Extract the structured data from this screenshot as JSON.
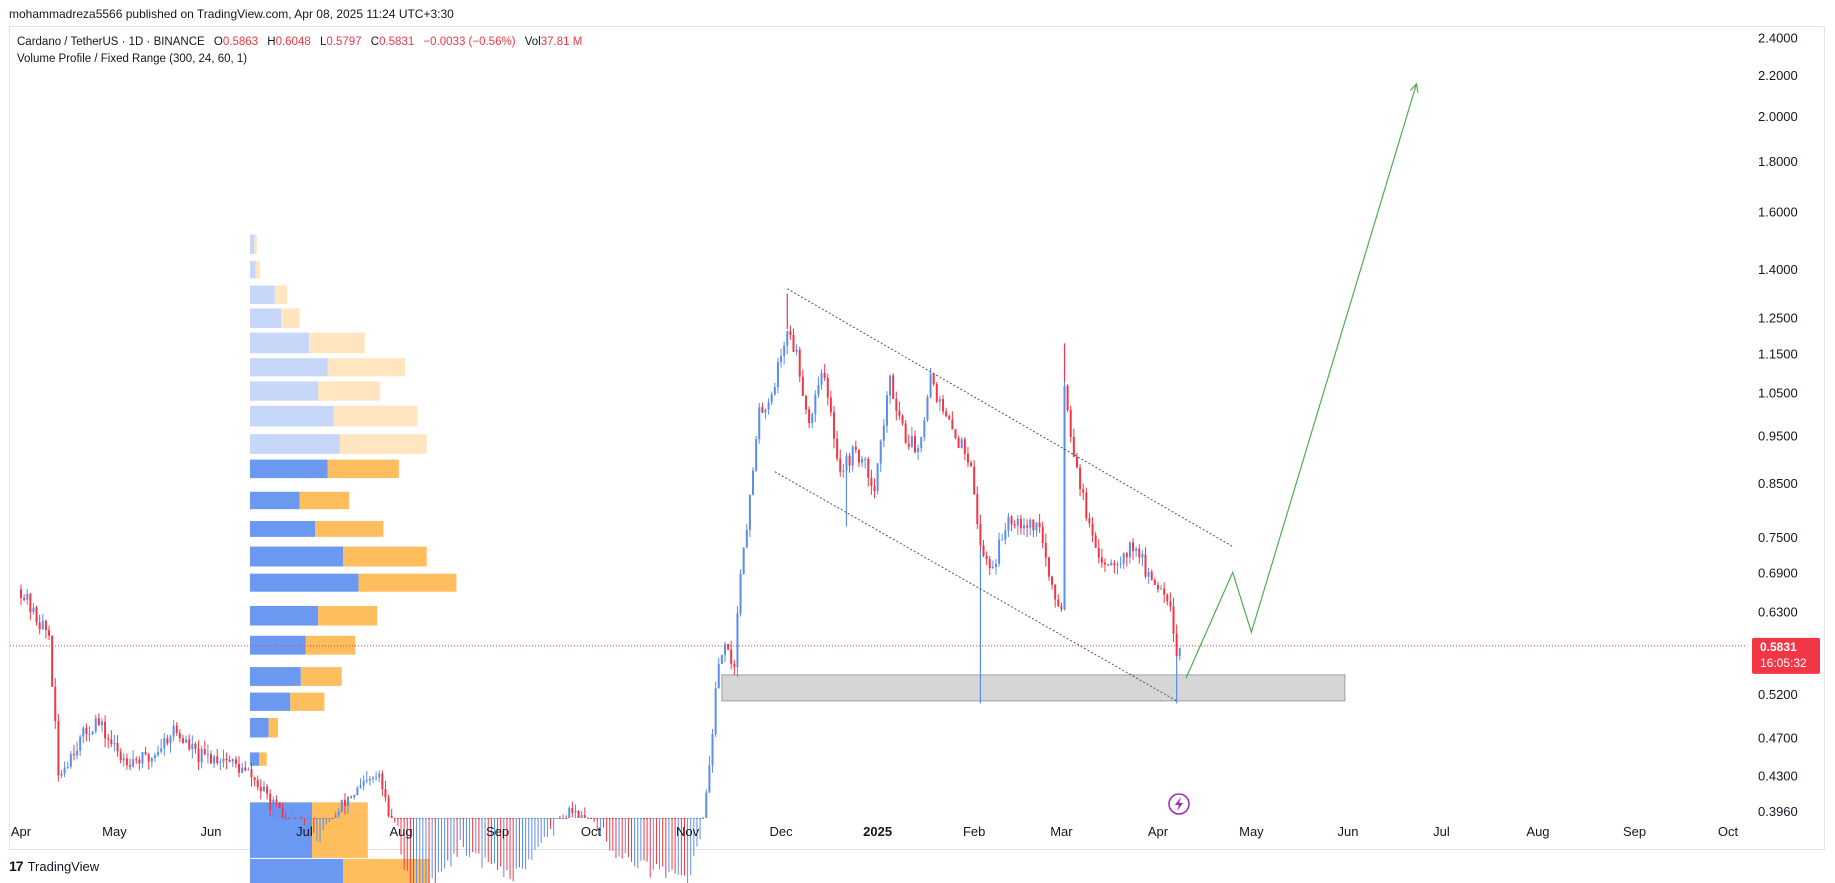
{
  "header": {
    "published": "mohammadreza5566 published on TradingView.com, Apr 08, 2025 11:24 UTC+3:30"
  },
  "legend": {
    "symbol": "Cardano / TetherUS · 1D · BINANCE",
    "o_label": "O",
    "o_value": "0.5863",
    "h_label": "H",
    "h_value": "0.6048",
    "l_label": "L",
    "l_value": "0.5797",
    "c_label": "C",
    "c_value": "0.5831",
    "change": "−0.0033 (−0.56%)",
    "vol_label": "Vol",
    "vol_value": "37.81 M",
    "indicator": "Volume Profile / Fixed Range (300, 24, 60, 1)"
  },
  "price_tag": {
    "price": "0.5831",
    "countdown": "16:05:32"
  },
  "footer": {
    "brand": "TradingView",
    "logo_text": "17"
  },
  "colors": {
    "up": "#5b8def",
    "down": "#f23645",
    "vp_buy": "#5b8def",
    "vp_sell": "#ffb74d",
    "drawing": "#4caf50",
    "zone": "#cfcfcf",
    "price_line": "#f23645"
  },
  "chart_data": {
    "type": "candlestick",
    "symbol": "ADAUSDT",
    "interval": "1D",
    "scale": "log",
    "x_ticks": [
      "Apr",
      "May",
      "Jun",
      "Jul",
      "Aug",
      "Sep",
      "Oct",
      "Nov",
      "Dec",
      "2025",
      "Feb",
      "Mar",
      "Apr",
      "May",
      "Jun",
      "Jul",
      "Aug",
      "Sep",
      "Oct"
    ],
    "y_ticks": [
      "2.4000",
      "2.2000",
      "2.0000",
      "1.8000",
      "1.6000",
      "1.4000",
      "1.2500",
      "1.1500",
      "1.0500",
      "0.9500",
      "0.8500",
      "0.7500",
      "0.6900",
      "0.6300",
      "0.5200",
      "0.4700",
      "0.4300",
      "0.3960"
    ],
    "ylim": [
      0.3905,
      2.46
    ],
    "last_price": 0.5831,
    "price_path": [
      [
        "2024-04-01",
        0.665
      ],
      [
        "2024-04-05",
        0.628
      ],
      [
        "2024-04-10",
        0.598
      ],
      [
        "2024-04-13",
        0.43
      ],
      [
        "2024-04-18",
        0.46
      ],
      [
        "2024-04-25",
        0.49
      ],
      [
        "2024-05-03",
        0.45
      ],
      [
        "2024-05-12",
        0.447
      ],
      [
        "2024-05-20",
        0.48
      ],
      [
        "2024-05-28",
        0.45
      ],
      [
        "2024-06-05",
        0.45
      ],
      [
        "2024-06-14",
        0.43
      ],
      [
        "2024-06-24",
        0.39
      ],
      [
        "2024-07-05",
        0.365
      ],
      [
        "2024-07-15",
        0.41
      ],
      [
        "2024-07-25",
        0.43
      ],
      [
        "2024-08-05",
        0.31
      ],
      [
        "2024-08-20",
        0.36
      ],
      [
        "2024-09-05",
        0.33
      ],
      [
        "2024-09-25",
        0.4
      ],
      [
        "2024-10-10",
        0.35
      ],
      [
        "2024-11-01",
        0.33
      ],
      [
        "2024-11-06",
        0.38
      ],
      [
        "2024-11-10",
        0.52
      ],
      [
        "2024-11-12",
        0.58
      ],
      [
        "2024-11-16",
        0.56
      ],
      [
        "2024-11-18",
        0.7
      ],
      [
        "2024-11-21",
        0.82
      ],
      [
        "2024-11-24",
        1.0
      ],
      [
        "2024-11-28",
        1.05
      ],
      [
        "2024-12-03",
        1.22
      ],
      [
        "2024-12-06",
        1.15
      ],
      [
        "2024-12-10",
        0.98
      ],
      [
        "2024-12-14",
        1.12
      ],
      [
        "2024-12-20",
        0.88
      ],
      [
        "2024-12-25",
        0.92
      ],
      [
        "2024-12-31",
        0.85
      ],
      [
        "2025-01-05",
        1.08
      ],
      [
        "2025-01-10",
        0.95
      ],
      [
        "2025-01-14",
        0.92
      ],
      [
        "2025-01-18",
        1.1
      ],
      [
        "2025-01-22",
        1.0
      ],
      [
        "2025-01-27",
        0.94
      ],
      [
        "2025-01-31",
        0.9
      ],
      [
        "2025-02-03",
        0.73
      ],
      [
        "2025-02-07",
        0.7
      ],
      [
        "2025-02-12",
        0.79
      ],
      [
        "2025-02-17",
        0.78
      ],
      [
        "2025-02-22",
        0.77
      ],
      [
        "2025-02-26",
        0.66
      ],
      [
        "2025-03-01",
        0.64
      ],
      [
        "2025-03-02",
        1.08
      ],
      [
        "2025-03-04",
        0.96
      ],
      [
        "2025-03-08",
        0.82
      ],
      [
        "2025-03-12",
        0.72
      ],
      [
        "2025-03-16",
        0.71
      ],
      [
        "2025-03-21",
        0.72
      ],
      [
        "2025-03-25",
        0.74
      ],
      [
        "2025-03-29",
        0.68
      ],
      [
        "2025-04-02",
        0.67
      ],
      [
        "2025-04-05",
        0.65
      ],
      [
        "2025-04-07",
        0.57
      ],
      [
        "2025-04-08",
        0.583
      ]
    ],
    "wicks": [
      {
        "date": "2024-12-03",
        "high": 1.325
      },
      {
        "date": "2024-12-22",
        "low": 0.77
      },
      {
        "date": "2025-02-03",
        "low": 0.51
      },
      {
        "date": "2025-03-02",
        "high": 1.18
      },
      {
        "date": "2025-04-07",
        "low": 0.51
      }
    ],
    "descending_channel": {
      "upper": [
        [
          "2024-12-03",
          1.34
        ],
        [
          "2025-04-25",
          0.735
        ]
      ],
      "lower": [
        [
          "2024-11-29",
          0.875
        ],
        [
          "2025-04-07",
          0.513
        ]
      ]
    },
    "support_zone": {
      "from": "2024-11-12",
      "to": "2025-05-31",
      "low": 0.513,
      "high": 0.545
    },
    "projection_path": [
      [
        "2025-04-10",
        0.541
      ],
      [
        "2025-04-25",
        0.692
      ],
      [
        "2025-05-01",
        0.602
      ],
      [
        "2025-06-23",
        2.16
      ]
    ],
    "volume_profile": {
      "rows": [
        {
          "price_low": 0.33,
          "price_high": 0.355,
          "buy": 15,
          "sell": 14
        },
        {
          "price_low": 0.355,
          "price_high": 0.405,
          "buy": 10,
          "sell": 9
        },
        {
          "price_low": 0.44,
          "price_high": 0.455,
          "buy": 1.5,
          "sell": 1.2
        },
        {
          "price_low": 0.47,
          "price_high": 0.493,
          "buy": 3,
          "sell": 1.5
        },
        {
          "price_low": 0.5,
          "price_high": 0.523,
          "buy": 6.5,
          "sell": 5.5
        },
        {
          "price_low": 0.53,
          "price_high": 0.555,
          "buy": 8.2,
          "sell": 6.6
        },
        {
          "price_low": 0.57,
          "price_high": 0.597,
          "buy": 9.0,
          "sell": 8.0
        },
        {
          "price_low": 0.61,
          "price_high": 0.64,
          "buy": 11.0,
          "sell": 9.5
        },
        {
          "price_low": 0.66,
          "price_high": 0.69,
          "buy": 17.5,
          "sell": 15.8
        },
        {
          "price_low": 0.7,
          "price_high": 0.735,
          "buy": 15.0,
          "sell": 13.5
        },
        {
          "price_low": 0.75,
          "price_high": 0.78,
          "buy": 10.5,
          "sell": 11.0
        },
        {
          "price_low": 0.8,
          "price_high": 0.835,
          "buy": 8.0,
          "sell": 8.0
        },
        {
          "price_low": 0.86,
          "price_high": 0.9,
          "buy": 12.5,
          "sell": 11.5
        },
        {
          "price_low": 0.91,
          "price_high": 0.955,
          "buy": 14.5,
          "sell": 14.0
        },
        {
          "price_low": 0.97,
          "price_high": 1.02,
          "buy": 13.5,
          "sell": 13.5
        },
        {
          "price_low": 1.03,
          "price_high": 1.08,
          "buy": 11.0,
          "sell": 10.0
        },
        {
          "price_low": 1.09,
          "price_high": 1.14,
          "buy": 12.5,
          "sell": 12.5
        },
        {
          "price_low": 1.15,
          "price_high": 1.21,
          "buy": 9.5,
          "sell": 9.0
        },
        {
          "price_low": 1.22,
          "price_high": 1.28,
          "buy": 5.0,
          "sell": 3.0
        },
        {
          "price_low": 1.29,
          "price_high": 1.35,
          "buy": 4.0,
          "sell": 2.0
        },
        {
          "price_low": 1.37,
          "price_high": 1.43,
          "buy": 0.9,
          "sell": 0.7
        },
        {
          "price_low": 1.45,
          "price_high": 1.52,
          "buy": 0.7,
          "sell": 0.4
        }
      ]
    }
  }
}
